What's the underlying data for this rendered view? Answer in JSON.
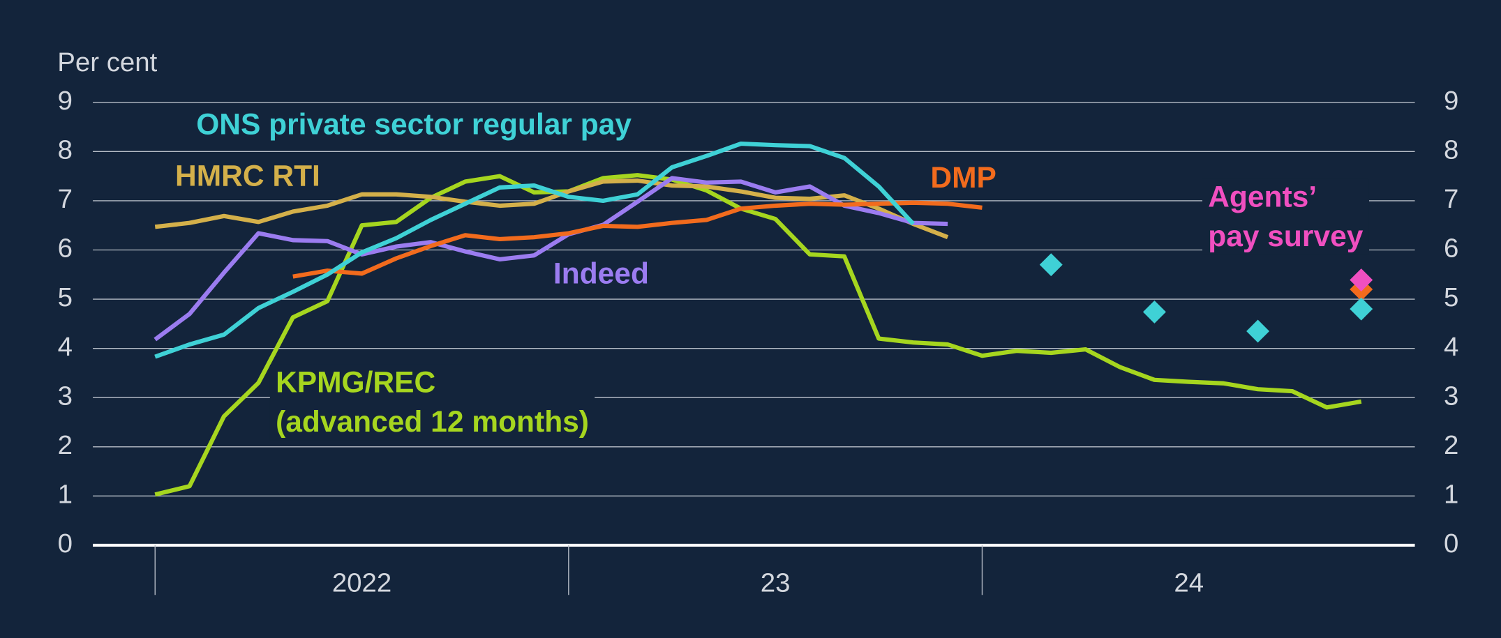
{
  "chart_data": {
    "type": "line",
    "y_label": "Per cent",
    "years": [
      "2022",
      "23",
      "24"
    ],
    "ylim": [
      0,
      9
    ],
    "yticks": [
      0,
      1,
      2,
      3,
      4,
      5,
      6,
      7,
      8,
      9
    ],
    "y2lim": [
      0,
      9
    ],
    "y2ticks": [
      0,
      1,
      2,
      3,
      4,
      5,
      6,
      7,
      8,
      9
    ],
    "grid": true,
    "series": [
      {
        "name": "KPMG/REC (advanced 12 months)",
        "label_lines": [
          "KPMG/REC",
          "(advanced 12 months)"
        ],
        "color": "#a6d61f",
        "values": [
          1.03,
          1.2,
          2.62,
          3.3,
          4.63,
          4.96,
          6.5,
          6.57,
          7.06,
          7.39,
          7.5,
          7.17,
          7.19,
          7.46,
          7.52,
          7.43,
          7.21,
          6.84,
          6.63,
          5.91,
          5.87,
          4.2,
          4.12,
          4.08,
          3.85,
          3.95,
          3.91,
          3.98,
          3.62,
          3.36,
          3.32,
          3.29,
          3.17,
          3.13,
          2.8,
          2.92
        ]
      },
      {
        "name": "HMRC RTI",
        "label_lines": [
          "HMRC RTI"
        ],
        "color": "#d4b04a",
        "values": [
          6.47,
          6.55,
          6.69,
          6.57,
          6.78,
          6.9,
          7.13,
          7.13,
          7.08,
          6.98,
          6.9,
          6.94,
          7.19,
          7.39,
          7.41,
          7.31,
          7.29,
          7.19,
          7.06,
          7.04,
          7.11,
          6.84,
          6.53,
          6.26,
          null,
          null,
          null,
          null,
          null,
          null,
          null,
          null,
          null,
          null,
          null,
          null
        ]
      },
      {
        "name": "Indeed",
        "label_lines": [
          "Indeed"
        ],
        "color": "#9b7cf0",
        "values": [
          4.18,
          4.7,
          5.54,
          6.34,
          6.2,
          6.18,
          5.91,
          6.07,
          6.16,
          5.97,
          5.81,
          5.89,
          6.32,
          6.51,
          6.98,
          7.46,
          7.37,
          7.39,
          7.17,
          7.29,
          6.9,
          6.75,
          6.55,
          6.53,
          null,
          null,
          null,
          null,
          null,
          null,
          null,
          null,
          null,
          null,
          null,
          null
        ]
      },
      {
        "name": "DMP",
        "label_lines": [
          "DMP"
        ],
        "color": "#f26b1d",
        "values": [
          null,
          null,
          null,
          null,
          5.46,
          5.58,
          5.52,
          5.83,
          6.08,
          6.3,
          6.22,
          6.26,
          6.34,
          6.49,
          6.47,
          6.55,
          6.61,
          6.84,
          6.9,
          6.94,
          6.92,
          6.94,
          6.96,
          6.94,
          6.86,
          null,
          null,
          null,
          null,
          null,
          null,
          null,
          null,
          null,
          null,
          null
        ],
        "marker_values": [
          null,
          null,
          null,
          null,
          null,
          null,
          null,
          null,
          null,
          null,
          null,
          null,
          null,
          null,
          null,
          null,
          null,
          null,
          null,
          null,
          null,
          null,
          null,
          null,
          null,
          null,
          null,
          null,
          null,
          null,
          null,
          null,
          null,
          null,
          null,
          5.2
        ]
      },
      {
        "name": "ONS private sector regular pay",
        "label_lines": [
          "ONS private sector regular pay"
        ],
        "color": "#3fd1d6",
        "values": [
          3.83,
          4.08,
          4.28,
          4.82,
          5.15,
          5.5,
          5.95,
          6.24,
          6.61,
          6.94,
          7.27,
          7.31,
          7.08,
          7.0,
          7.13,
          7.68,
          7.91,
          8.16,
          8.13,
          8.11,
          7.87,
          7.29,
          6.53,
          null,
          null,
          null,
          null,
          null,
          null,
          null,
          null,
          null,
          null,
          null,
          null,
          null
        ],
        "marker_values": [
          null,
          null,
          null,
          null,
          null,
          null,
          null,
          null,
          null,
          null,
          null,
          null,
          null,
          null,
          null,
          null,
          null,
          null,
          null,
          null,
          null,
          null,
          null,
          null,
          null,
          null,
          5.7,
          null,
          null,
          4.74,
          null,
          null,
          4.35,
          null,
          null,
          4.8
        ]
      },
      {
        "name": "Agents’ pay survey",
        "label_lines": [
          "Agents’",
          "pay survey"
        ],
        "color": "#f04fc0",
        "marker_values": [
          null,
          null,
          null,
          null,
          null,
          null,
          null,
          null,
          null,
          null,
          null,
          null,
          null,
          null,
          null,
          null,
          null,
          null,
          null,
          null,
          null,
          null,
          null,
          null,
          null,
          null,
          null,
          null,
          null,
          null,
          null,
          null,
          null,
          null,
          null,
          5.39
        ]
      }
    ]
  }
}
